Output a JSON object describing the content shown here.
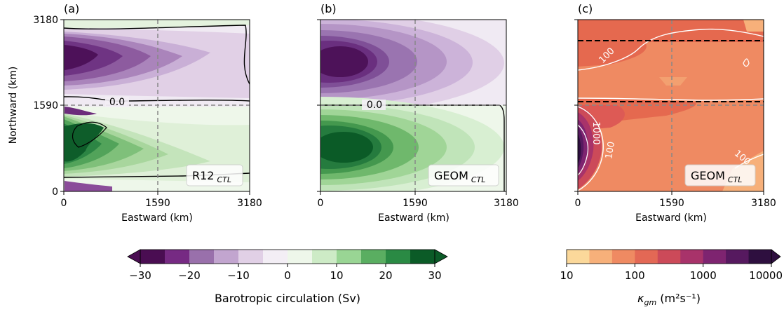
{
  "chart_data": [
    {
      "type": "heatmap",
      "panel_label": "(a)",
      "inset_label": "R12",
      "inset_subscript": "CTL",
      "xlabel": "Eastward (km)",
      "ylabel": "Northward (km)",
      "xticks": [
        "0",
        "1590",
        "3180"
      ],
      "yticks": [
        "0",
        "1590",
        "3180"
      ],
      "xlim": [
        0,
        3180
      ],
      "ylim": [
        0,
        3180
      ],
      "field": "Barotropic circulation (Sv)",
      "zero_contour_label": "0.0",
      "gyres": [
        {
          "name": "subpolar",
          "peak_value": -30,
          "center": [
            500,
            2600
          ]
        },
        {
          "name": "subtropical",
          "peak_value": 30,
          "center": [
            400,
            900
          ]
        }
      ],
      "reference_lines": {
        "x": 1590,
        "y": 1590
      }
    },
    {
      "type": "heatmap",
      "panel_label": "(b)",
      "inset_label": "GEOM",
      "inset_subscript": "CTL",
      "xlabel": "Eastward (km)",
      "ylabel": "",
      "xticks": [
        "0",
        "1590",
        "3180"
      ],
      "xlim": [
        0,
        3180
      ],
      "ylim": [
        0,
        3180
      ],
      "field": "Barotropic circulation (Sv)",
      "zero_contour_label": "0.0",
      "gyres": [
        {
          "name": "subpolar",
          "peak_value": -30,
          "center": [
            400,
            2430
          ]
        },
        {
          "name": "subtropical",
          "peak_value": 30,
          "center": [
            400,
            820
          ]
        }
      ],
      "reference_lines": {
        "x": 1590,
        "y": 1590
      }
    },
    {
      "type": "heatmap",
      "panel_label": "(c)",
      "inset_label": "GEOM",
      "inset_subscript": "CTL",
      "xlabel": "Eastward (km)",
      "ylabel": "",
      "xticks": [
        "0",
        "1590",
        "3180"
      ],
      "xlim": [
        0,
        3180
      ],
      "ylim": [
        0,
        3180
      ],
      "field": "κgm (m²s⁻¹)",
      "contour_labels": [
        "100",
        "1000",
        "100",
        "100"
      ],
      "dashed_lines_y": [
        2790,
        1680
      ],
      "reference_lines": {
        "x": 1590,
        "y": 1590
      }
    }
  ],
  "colorbars": {
    "circulation": {
      "label": "Barotropic circulation (Sv)",
      "ticks": [
        "−30",
        "−20",
        "−10",
        "0",
        "10",
        "20",
        "30"
      ],
      "colors": [
        "#4a0d52",
        "#762a83",
        "#9970ab",
        "#c2a5cf",
        "#e1d0e6",
        "#f3eef5",
        "#eef7ea",
        "#cdebc6",
        "#99d594",
        "#5aae61",
        "#2a8a44",
        "#0b5b27"
      ]
    },
    "kappa": {
      "label_main": "κ",
      "label_sub": "gm",
      "label_units": " (m²s⁻¹)",
      "ticks": [
        "10",
        "100",
        "1000",
        "10000"
      ],
      "colors": [
        "#fbd89a",
        "#f7b07a",
        "#ef8a62",
        "#e36855",
        "#cc4a59",
        "#a8336a",
        "#7e2470",
        "#56195f",
        "#2e0f3f"
      ]
    }
  }
}
